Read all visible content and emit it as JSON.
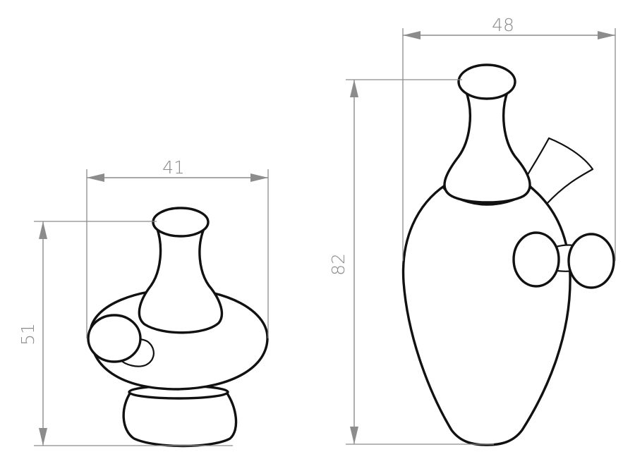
{
  "drawing": {
    "left_object": {
      "width_label": "41",
      "height_label": "51"
    },
    "right_object": {
      "width_label": "48",
      "height_label": "82"
    },
    "colors": {
      "dimension": "#8c8c8c",
      "outline": "#111111",
      "background": "#ffffff"
    }
  }
}
